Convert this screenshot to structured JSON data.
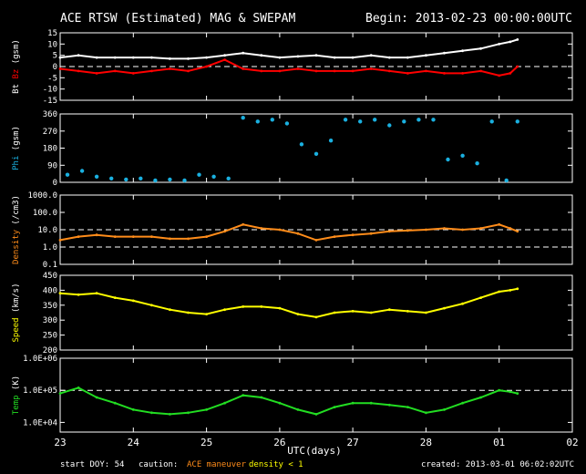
{
  "header": {
    "title": "ACE RTSW (Estimated) MAG & SWEPAM",
    "begin": "Begin: 2013-02-23 00:00:00UTC"
  },
  "footer": {
    "start_doy": "start DOY:  54",
    "caution_label": "caution:",
    "caution_maneuver": "ACE maneuver",
    "caution_density": "density < 1",
    "created": "created: 2013-03-01 06:02:02UTC"
  },
  "colors": {
    "bt": "#ffffff",
    "bz": "#ff0000",
    "phi": "#1ab0e0",
    "density": "#ff8c1a",
    "speed": "#ffff00",
    "temp": "#22dd22",
    "frame": "#ffffff",
    "background": "#000000"
  },
  "chart_data": [
    {
      "type": "line",
      "panel": "magnetic",
      "ylabel_parts": [
        {
          "text": "Bt",
          "color": "#ffffff"
        },
        {
          "text": "Bz",
          "color": "#ff0000"
        },
        {
          "text": "(gsm)",
          "color": "#ffffff"
        }
      ],
      "ylim": [
        -15,
        15
      ],
      "yticks": [
        -15,
        -10,
        -5,
        0,
        5,
        10,
        15
      ],
      "ytick_labels": [
        "-15",
        "-10",
        "-5",
        "0",
        "5",
        "10",
        "15"
      ],
      "reference_lines": [
        0
      ],
      "x_unit": "days since 2013-02-23 00:00 UTC",
      "series": [
        {
          "key": "Bt",
          "color": "#ffffff",
          "x": [
            0,
            0.25,
            0.5,
            0.75,
            1,
            1.25,
            1.5,
            1.75,
            2,
            2.25,
            2.5,
            2.75,
            3,
            3.25,
            3.5,
            3.75,
            4,
            4.25,
            4.5,
            4.75,
            5,
            5.25,
            5.5,
            5.75,
            6,
            6.15,
            6.25
          ],
          "y": [
            4,
            5,
            4,
            4,
            4,
            4,
            3.5,
            3.5,
            4,
            5,
            6,
            5,
            4,
            4.5,
            5,
            4,
            4,
            5,
            4,
            4,
            5,
            6,
            7,
            8,
            10,
            11,
            12
          ]
        },
        {
          "key": "Bz",
          "color": "#ff0000",
          "x": [
            0,
            0.25,
            0.5,
            0.75,
            1,
            1.25,
            1.5,
            1.75,
            2,
            2.25,
            2.5,
            2.75,
            3,
            3.25,
            3.5,
            3.75,
            4,
            4.25,
            4.5,
            4.75,
            5,
            5.25,
            5.5,
            5.75,
            6,
            6.15,
            6.25
          ],
          "y": [
            -1,
            -2,
            -3,
            -2,
            -3,
            -2,
            -1,
            -2,
            0,
            3,
            -1,
            -2,
            -2,
            -1,
            -2,
            -2,
            -2,
            -1,
            -2,
            -3,
            -2,
            -3,
            -3,
            -2,
            -4,
            -3,
            0
          ]
        }
      ]
    },
    {
      "type": "scatter",
      "panel": "phi",
      "ylabel_parts": [
        {
          "text": "Phi",
          "color": "#1ab0e0"
        },
        {
          "text": "(gsm)",
          "color": "#ffffff"
        }
      ],
      "ylim": [
        0,
        360
      ],
      "yticks": [
        0,
        90,
        180,
        270,
        360
      ],
      "ytick_labels": [
        "0",
        "90",
        "180",
        "270",
        "360"
      ],
      "series": [
        {
          "key": "Phi",
          "color": "#1ab0e0",
          "x": [
            0.1,
            0.3,
            0.5,
            0.7,
            0.9,
            1.1,
            1.3,
            1.5,
            1.7,
            1.9,
            2.1,
            2.3,
            2.5,
            2.7,
            2.9,
            3.1,
            3.3,
            3.5,
            3.7,
            3.9,
            4.1,
            4.3,
            4.5,
            4.7,
            4.9,
            5.1,
            5.3,
            5.5,
            5.7,
            5.9,
            6.1,
            6.25
          ],
          "y": [
            40,
            60,
            30,
            20,
            15,
            20,
            10,
            15,
            10,
            40,
            30,
            20,
            340,
            320,
            330,
            310,
            200,
            150,
            220,
            330,
            320,
            330,
            300,
            320,
            330,
            330,
            120,
            140,
            100,
            320,
            10,
            320
          ]
        }
      ]
    },
    {
      "type": "line",
      "panel": "density",
      "ylabel_parts": [
        {
          "text": "Density",
          "color": "#ff8c1a"
        },
        {
          "text": "(/cm3)",
          "color": "#ffffff"
        }
      ],
      "y_scale": "log",
      "ylim": [
        0.1,
        1000
      ],
      "yticks": [
        0.1,
        1,
        10,
        100,
        1000
      ],
      "ytick_labels": [
        "0.1",
        "1.0",
        "10.0",
        "100.0",
        "1000.0"
      ],
      "reference_lines": [
        1,
        10
      ],
      "series": [
        {
          "key": "Density",
          "color": "#ff8c1a",
          "x": [
            0,
            0.25,
            0.5,
            0.75,
            1,
            1.25,
            1.5,
            1.75,
            2,
            2.25,
            2.5,
            2.75,
            3,
            3.25,
            3.5,
            3.75,
            4,
            4.25,
            4.5,
            4.75,
            5,
            5.25,
            5.5,
            5.75,
            6,
            6.15,
            6.25
          ],
          "y": [
            2.5,
            4,
            5,
            4,
            4,
            4,
            3,
            3,
            4,
            8,
            20,
            12,
            10,
            6,
            2.5,
            4,
            5,
            6,
            8,
            9,
            10,
            12,
            10,
            12,
            20,
            12,
            8
          ]
        }
      ]
    },
    {
      "type": "line",
      "panel": "speed",
      "ylabel_parts": [
        {
          "text": "Speed",
          "color": "#ffff00"
        },
        {
          "text": "(km/s)",
          "color": "#ffffff"
        }
      ],
      "ylim": [
        200,
        450
      ],
      "yticks": [
        200,
        250,
        300,
        350,
        400,
        450
      ],
      "ytick_labels": [
        "200",
        "250",
        "300",
        "350",
        "400",
        "450"
      ],
      "series": [
        {
          "key": "Speed",
          "color": "#ffff00",
          "x": [
            0,
            0.25,
            0.5,
            0.75,
            1,
            1.25,
            1.5,
            1.75,
            2,
            2.25,
            2.5,
            2.75,
            3,
            3.25,
            3.5,
            3.75,
            4,
            4.25,
            4.5,
            4.75,
            5,
            5.25,
            5.5,
            5.75,
            6,
            6.15,
            6.25
          ],
          "y": [
            390,
            385,
            390,
            375,
            365,
            350,
            335,
            325,
            320,
            335,
            345,
            345,
            340,
            320,
            310,
            325,
            330,
            325,
            335,
            330,
            325,
            340,
            355,
            375,
            395,
            400,
            405
          ]
        }
      ]
    },
    {
      "type": "line",
      "panel": "temperature",
      "ylabel_parts": [
        {
          "text": "Temp",
          "color": "#22dd22"
        },
        {
          "text": "(K)",
          "color": "#ffffff"
        }
      ],
      "y_scale": "log",
      "ylim": [
        5000,
        1000000
      ],
      "yticks": [
        10000,
        100000,
        1000000
      ],
      "ytick_labels": [
        "1.0E+04",
        "1.0E+05",
        "1.0E+06"
      ],
      "reference_lines": [
        100000
      ],
      "series": [
        {
          "key": "Temp",
          "color": "#22dd22",
          "x": [
            0,
            0.25,
            0.5,
            0.75,
            1,
            1.25,
            1.5,
            1.75,
            2,
            2.25,
            2.5,
            2.75,
            3,
            3.25,
            3.5,
            3.75,
            4,
            4.25,
            4.5,
            4.75,
            5,
            5.25,
            5.5,
            5.75,
            6,
            6.15,
            6.25
          ],
          "y": [
            80000,
            120000,
            60000,
            40000,
            25000,
            20000,
            18000,
            20000,
            25000,
            40000,
            70000,
            60000,
            40000,
            25000,
            18000,
            30000,
            40000,
            40000,
            35000,
            30000,
            20000,
            25000,
            40000,
            60000,
            100000,
            90000,
            80000
          ]
        }
      ]
    }
  ],
  "x_axis": {
    "xlabel": "UTC(days)",
    "xlim": [
      0,
      7
    ],
    "tick_labels": [
      "23",
      "24",
      "25",
      "26",
      "27",
      "28",
      "01",
      "02"
    ]
  }
}
